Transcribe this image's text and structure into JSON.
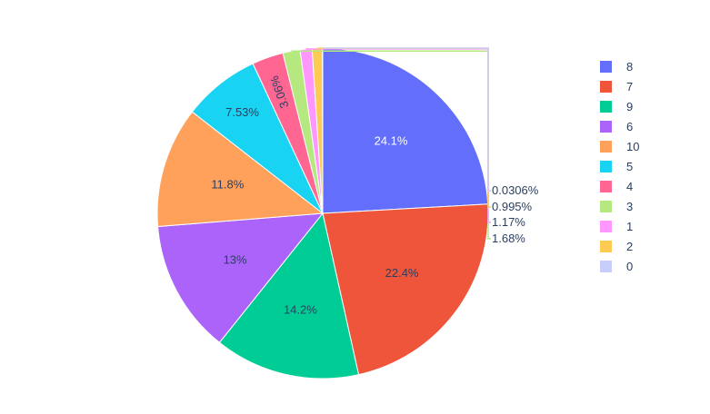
{
  "chart_data": {
    "type": "pie",
    "slices": [
      {
        "label": "8",
        "percent": 24.1,
        "text": "24.1%",
        "color": "#636efa",
        "text_color": "#ffffff"
      },
      {
        "label": "7",
        "percent": 22.4,
        "text": "22.4%",
        "color": "#ef553b",
        "text_color": "#2a3f5f"
      },
      {
        "label": "9",
        "percent": 14.2,
        "text": "14.2%",
        "color": "#00cc96",
        "text_color": "#2a3f5f"
      },
      {
        "label": "6",
        "percent": 13,
        "text": "13%",
        "color": "#ab63fa",
        "text_color": "#2a3f5f"
      },
      {
        "label": "10",
        "percent": 11.8,
        "text": "11.8%",
        "color": "#ffa15a",
        "text_color": "#2a3f5f"
      },
      {
        "label": "5",
        "percent": 7.53,
        "text": "7.53%",
        "color": "#19d3f3",
        "text_color": "#2a3f5f"
      },
      {
        "label": "4",
        "percent": 3.06,
        "text": "3.06%",
        "color": "#ff6692",
        "text_color": "#2a3f5f"
      },
      {
        "label": "3",
        "percent": 1.68,
        "text": "1.68%",
        "color": "#b6e880",
        "text_color": "#2a3f5f"
      },
      {
        "label": "1",
        "percent": 1.17,
        "text": "1.17%",
        "color": "#ff97ff",
        "text_color": "#2a3f5f"
      },
      {
        "label": "2",
        "percent": 0.995,
        "text": "0.995%",
        "color": "#fecb52",
        "text_color": "#2a3f5f"
      },
      {
        "label": "0",
        "percent": 0.0306,
        "text": "0.0306%",
        "color": "#c9cdfb",
        "text_color": "#2a3f5f"
      }
    ],
    "legend_order": [
      "8",
      "7",
      "9",
      "6",
      "10",
      "5",
      "4",
      "3",
      "1",
      "2",
      "0"
    ],
    "legend_position": "right"
  }
}
